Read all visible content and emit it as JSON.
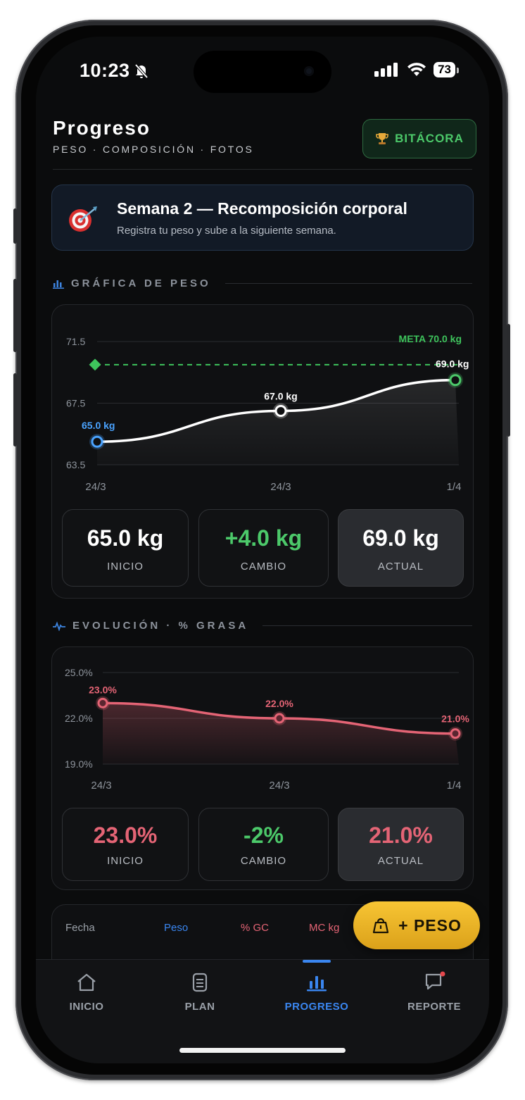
{
  "status_bar": {
    "time": "10:23",
    "battery": "73"
  },
  "header": {
    "title": "Progreso",
    "subtitle": "PESO · COMPOSICIÓN · FOTOS",
    "bitacora_label": "BITÁCORA"
  },
  "banner": {
    "title": "Semana 2 — Recomposición corporal",
    "subtitle": "Registra tu peso y sube a la siguiente semana."
  },
  "weight_section": {
    "title": "GRÁFICA DE PESO",
    "icon": "bar-chart-icon"
  },
  "fat_section": {
    "title": "EVOLUCIÓN · % GRASA",
    "icon": "pulse-icon"
  },
  "chart_data": [
    {
      "type": "line",
      "x": [
        "24/3",
        "24/3",
        "1/4"
      ],
      "series": [
        {
          "values": [
            65.0,
            67.0,
            69.0
          ]
        }
      ],
      "data_labels": [
        "65.0 kg",
        "67.0 kg",
        "69.0 kg"
      ],
      "yticks": [
        "71.5",
        "67.5",
        "63.5"
      ],
      "ylim": [
        63.5,
        71.5
      ],
      "goal": {
        "value": 70.0,
        "label": "META 70.0 kg"
      },
      "colors": {
        "line": "#ffffff",
        "goal": "#3ec45c",
        "start_point": "#4aa3ff",
        "end_point": "#4cc96a"
      }
    },
    {
      "type": "area",
      "x": [
        "24/3",
        "24/3",
        "1/4"
      ],
      "series": [
        {
          "values": [
            23.0,
            22.0,
            21.0
          ]
        }
      ],
      "data_labels": [
        "23.0%",
        "22.0%",
        "21.0%"
      ],
      "yticks": [
        "25.0%",
        "22.0%",
        "19.0%"
      ],
      "ylim": [
        19.0,
        25.0
      ],
      "colors": {
        "line": "#e46475"
      }
    }
  ],
  "weight_stats": [
    {
      "value": "65.0 kg",
      "label": "INICIO",
      "color": "#ffffff"
    },
    {
      "value": "+4.0 kg",
      "label": "CAMBIO",
      "color": "#4cc96a"
    },
    {
      "value": "69.0 kg",
      "label": "ACTUAL",
      "color": "#ffffff"
    }
  ],
  "fat_stats": [
    {
      "value": "23.0%",
      "label": "INICIO",
      "color": "#e46475"
    },
    {
      "value": "-2%",
      "label": "CAMBIO",
      "color": "#4cc96a"
    },
    {
      "value": "21.0%",
      "label": "ACTUAL",
      "color": "#e46475"
    }
  ],
  "table": {
    "headers": [
      "Fecha",
      "Peso",
      "% GC",
      "MC kg"
    ],
    "header_colors": [
      "#9aa0a8",
      "#3a86f0",
      "#e46475",
      "#e46475"
    ]
  },
  "fab": {
    "label": "+ PESO",
    "icon": "weight-icon"
  },
  "tabs": [
    {
      "label": "INICIO",
      "icon": "home-icon"
    },
    {
      "label": "PLAN",
      "icon": "document-icon"
    },
    {
      "label": "PROGRESO",
      "icon": "bar-chart-icon",
      "active": true
    },
    {
      "label": "REPORTE",
      "icon": "chat-icon"
    }
  ]
}
